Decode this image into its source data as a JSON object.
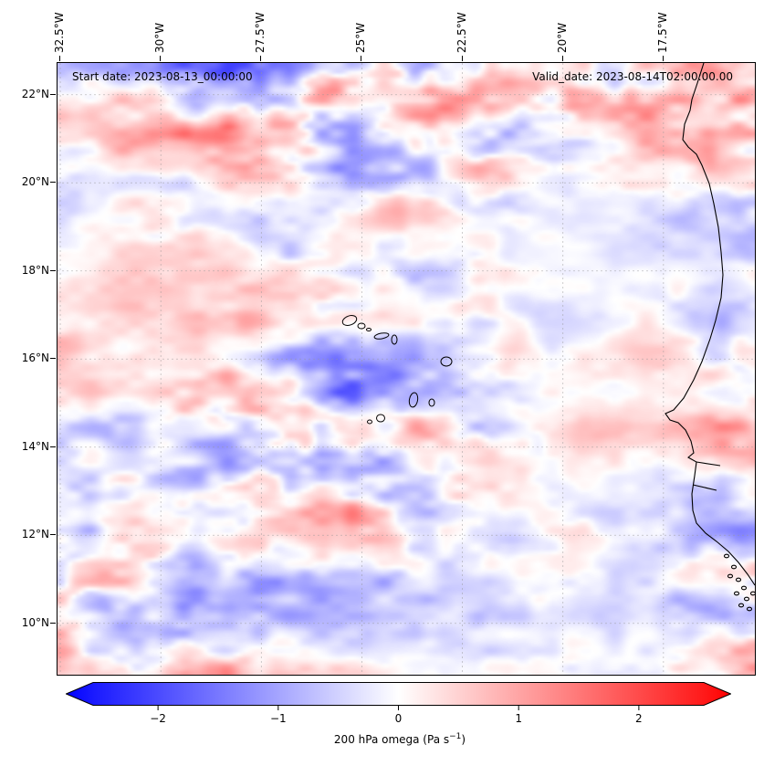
{
  "figure": {
    "start_date": "Start date: 2023-08-13_00:00:00",
    "valid_date": "Valid_date: 2023-08-14T02:00:00.00",
    "x_ticks": [
      {
        "label": "32.5°W",
        "lon": 32.5
      },
      {
        "label": "30°W",
        "lon": 30
      },
      {
        "label": "27.5°W",
        "lon": 27.5
      },
      {
        "label": "25°W",
        "lon": 25
      },
      {
        "label": "22.5°W",
        "lon": 22.5
      },
      {
        "label": "20°W",
        "lon": 20
      },
      {
        "label": "17.5°W",
        "lon": 17.5
      }
    ],
    "y_ticks": [
      {
        "label": "22°N",
        "lat": 22
      },
      {
        "label": "20°N",
        "lat": 20
      },
      {
        "label": "18°N",
        "lat": 18
      },
      {
        "label": "16°N",
        "lat": 16
      },
      {
        "label": "14°N",
        "lat": 14
      },
      {
        "label": "12°N",
        "lat": 12
      },
      {
        "label": "10°N",
        "lat": 10
      }
    ],
    "colorbar": {
      "ticks": [
        {
          "label": "−2",
          "value": -2
        },
        {
          "label": "−1",
          "value": -1
        },
        {
          "label": "0",
          "value": 0
        },
        {
          "label": "1",
          "value": 1
        },
        {
          "label": "2",
          "value": 2
        }
      ],
      "label_prefix": "200 hPa omega (Pa s",
      "label_sup": "−1",
      "label_suffix": ")",
      "vmin": -2.54,
      "vmax": 2.54,
      "extend": "both",
      "color_negative": "#0000ff",
      "color_zero": "#ffffff",
      "color_positive": "#ff0000"
    }
  },
  "chart_data": {
    "type": "heatmap",
    "title": "",
    "annotations": [
      "Start date: 2023-08-13_00:00:00",
      "Valid_date: 2023-08-14T02:00:00.00"
    ],
    "field": "200 hPa omega",
    "units": "Pa s⁻¹",
    "colormap": "bwr (blue-white-red diverging)",
    "colorbar_label": "200 hPa omega (Pa s⁻¹)",
    "colorbar_ticks": [
      -2,
      -1,
      0,
      1,
      2
    ],
    "value_range": [
      -2.54,
      2.54
    ],
    "colorbar_extend": "both",
    "x_axis": {
      "label": "longitude",
      "tick_labels": [
        "32.5°W",
        "30°W",
        "27.5°W",
        "25°W",
        "22.5°W",
        "20°W",
        "17.5°W"
      ],
      "range_deg_west": [
        32.6,
        15.2
      ]
    },
    "y_axis": {
      "label": "latitude",
      "tick_labels": [
        "22°N",
        "20°N",
        "18°N",
        "16°N",
        "14°N",
        "12°N",
        "10°N"
      ],
      "range_deg_north": [
        8.8,
        22.7
      ]
    },
    "grid": "dashed gray graticule every 2.5° longitude and 2° latitude",
    "map_features": [
      "West African coastline (Mauritania, Senegal, Gambia, Guinea-Bissau)",
      "Cape Verde archipelago",
      "Cap-Vert (Dakar) peninsula",
      "offshore islets near Guinea-Bissau"
    ],
    "field_description": "Small-scale alternating positive (red, subsidence) and negative (blue, ascent) omega anomalies, mostly |ω| < 1 Pa s⁻¹ (pale colors), organized in elongated east–west streaks; stronger red streaks near 13–16°N east of 25°W and mixed stronger red/blue anomalies south of 11°N."
  }
}
